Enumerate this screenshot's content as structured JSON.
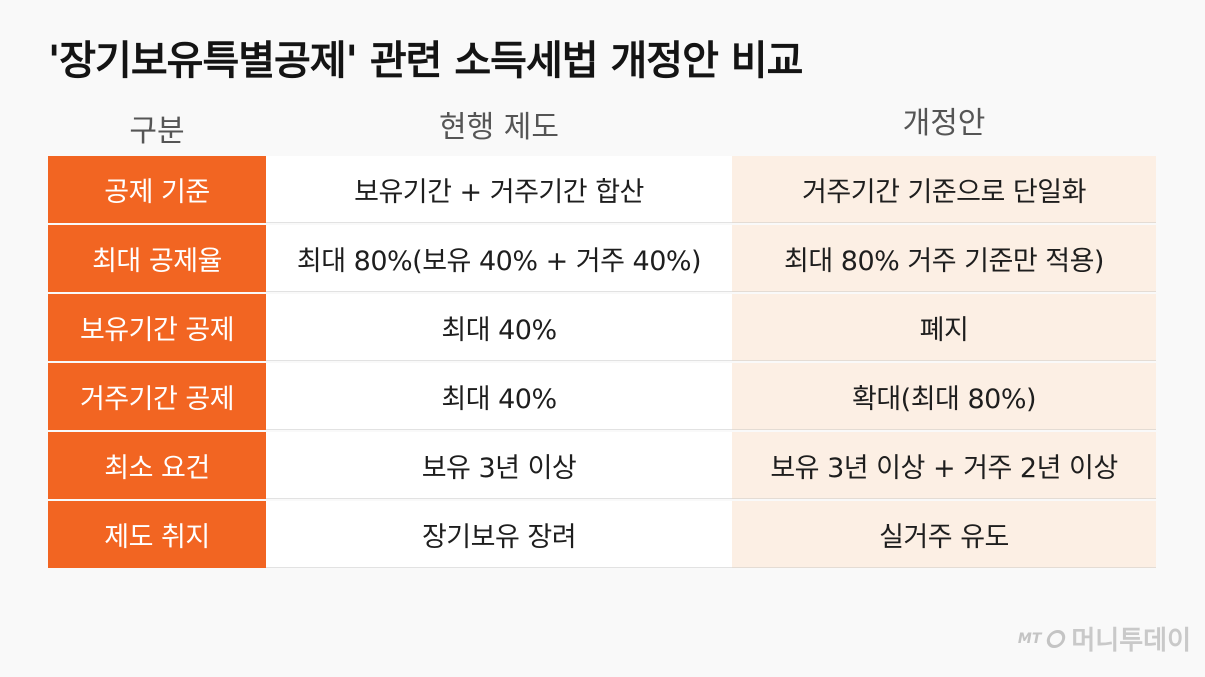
{
  "title": "'장기보유특별공제' 관련 소득세법 개정안 비교",
  "headers": [
    "구분",
    "현행 제도",
    "개정안"
  ],
  "rows": [
    {
      "label": "공제 기준",
      "current": "보유기간 + 거주기간 합산",
      "proposed": "거주기간 기준으로 단일화"
    },
    {
      "label": "최대 공제율",
      "current": "최대 80%(보유 40% + 거주 40%)",
      "proposed": "최대 80% 거주 기준만 적용)"
    },
    {
      "label": "보유기간 공제",
      "current": "최대 40%",
      "proposed": "폐지"
    },
    {
      "label": "거주기간 공제",
      "current": "최대 40%",
      "proposed": "확대(최대 80%)"
    },
    {
      "label": "최소 요건",
      "current": "보유 3년 이상",
      "proposed": "보유 3년 이상 + 거주 2년 이상"
    },
    {
      "label": "제도 취지",
      "current": "장기보유 장려",
      "proposed": "실거주 유도"
    }
  ],
  "watermark": {
    "mark": "MT",
    "name": "머니투데이"
  },
  "colors": {
    "label_bg": "#f26522",
    "proposed_bg": "#fcefe4",
    "current_bg": "#ffffff"
  }
}
